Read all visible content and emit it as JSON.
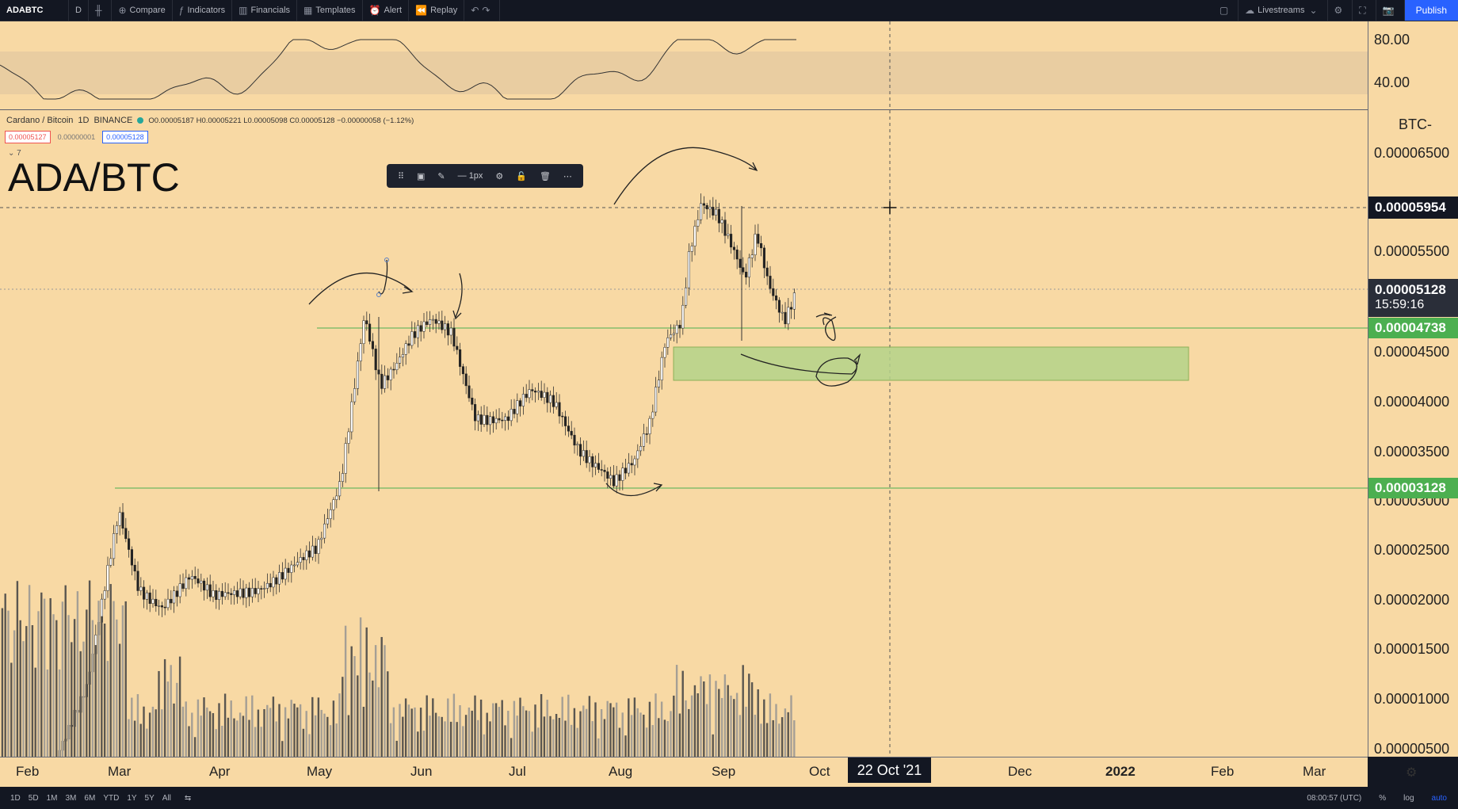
{
  "toolbar": {
    "symbol": "ADABTC",
    "interval": "D",
    "compare": "Compare",
    "indicators": "Indicators",
    "financials": "Financials",
    "templates": "Templates",
    "alert": "Alert",
    "replay": "Replay",
    "livestreams": "Livestreams",
    "publish": "Publish"
  },
  "legend": {
    "pair": "Cardano / Bitcoin",
    "interval": "1D",
    "exchange": "BINANCE",
    "ohlc": "O0.00005187 H0.00005221 L0.00005098 C0.00005128 −0.00000058 (−1.12%)",
    "bid": "0.00005127",
    "spread": "0.00000001",
    "ask": "0.00005128",
    "collapse": "7"
  },
  "title": "ADA/BTC",
  "draw_toolbar": {
    "width_label": "1px"
  },
  "indicator_axis": [
    "80.00",
    "40.00"
  ],
  "price_axis": {
    "unit": "BTC",
    "labels": [
      "0.00006500",
      "0.00005500",
      "0.00004500",
      "0.00004000",
      "0.00003500",
      "0.00003000",
      "0.00002500",
      "0.00002000",
      "0.00001500",
      "0.00001000",
      "0.00000500"
    ],
    "crosshair_price": "0.00005954",
    "last_price": "0.00005128",
    "countdown": "15:59:16",
    "level_upper": "0.00004738",
    "level_lower": "0.00003128"
  },
  "time_axis": {
    "labels": [
      "Feb",
      "Mar",
      "Apr",
      "May",
      "Jun",
      "Jul",
      "Aug",
      "Sep",
      "Oct",
      "Dec",
      "2022",
      "Feb",
      "Mar"
    ],
    "crosshair_date": "22 Oct '21"
  },
  "bottom": {
    "ranges": [
      "1D",
      "5D",
      "1M",
      "3M",
      "6M",
      "YTD",
      "1Y",
      "5Y",
      "All"
    ],
    "clock": "08:00:57 (UTC)",
    "pct": "%",
    "log": "log",
    "auto": "auto"
  },
  "colors": {
    "chart_bg": "#f8d9a4",
    "level_line": "#4caf50",
    "zone_fill": "#b5d48a",
    "toolbar_bg": "#131722",
    "accent": "#2962ff"
  }
}
